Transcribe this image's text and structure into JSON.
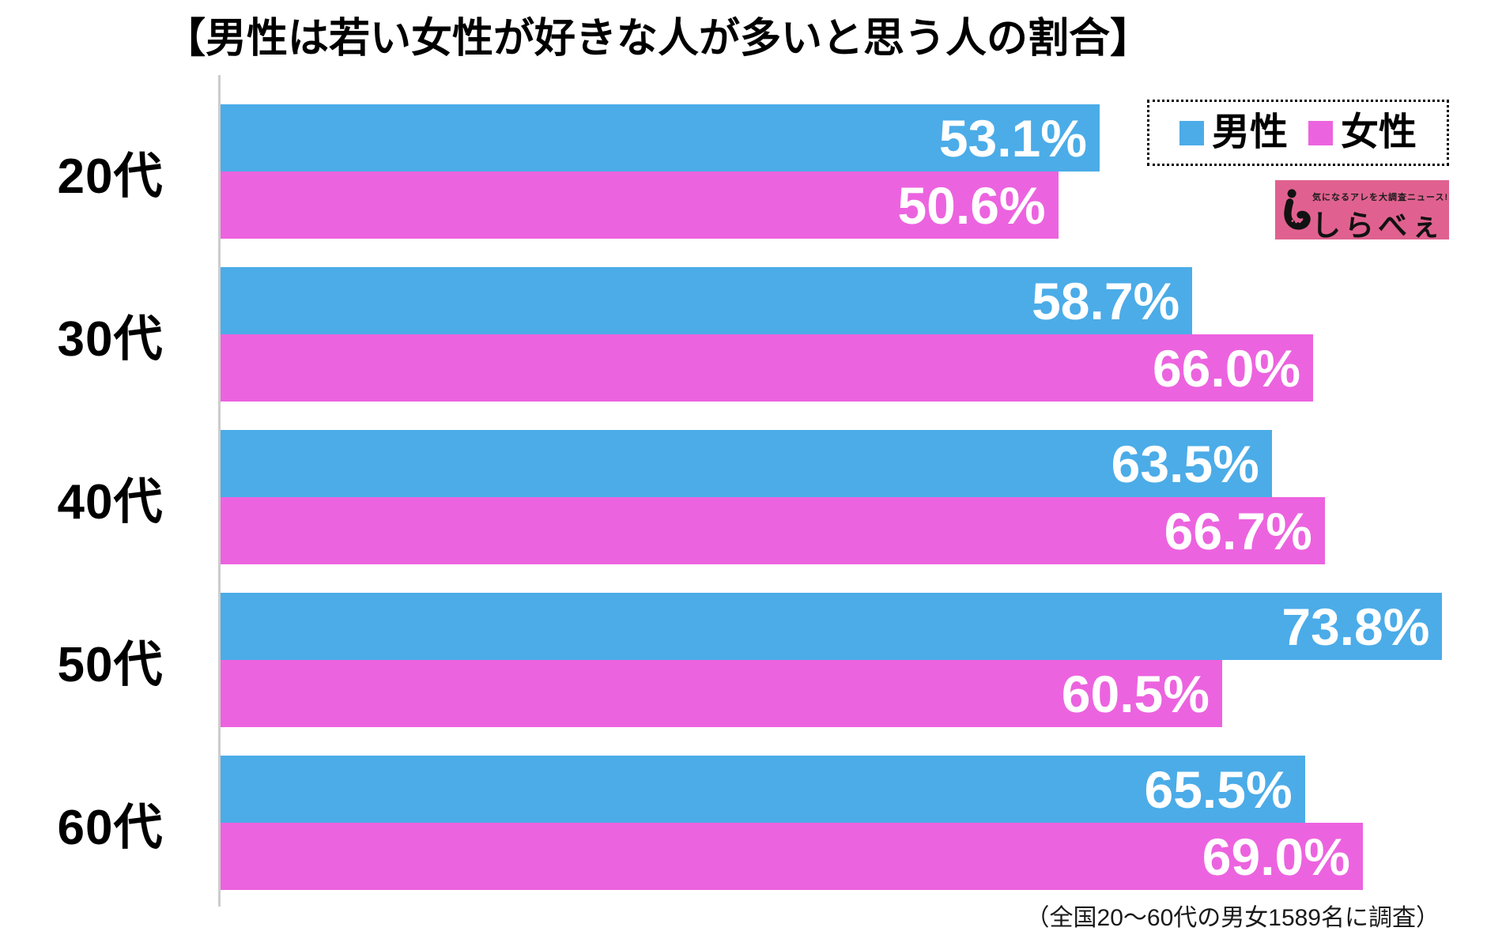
{
  "footnote": "（全国20〜60代の男女1589名に調査）",
  "logo": {
    "tagline": "気になるアレを大調査ニュース!",
    "name": "しらべぇ",
    "bg_color": "#E0618F",
    "icon": "shirabee-mascot"
  },
  "chart_data": {
    "type": "bar",
    "orientation": "horizontal",
    "title": "【男性は若い女性が好きな人が多いと思う人の割合】",
    "categories": [
      "20代",
      "30代",
      "40代",
      "50代",
      "60代"
    ],
    "series": [
      {
        "name": "男性",
        "color": "#4BACE8",
        "values": [
          53.1,
          58.7,
          63.5,
          73.8,
          65.5
        ],
        "labels": [
          "53.1%",
          "58.7%",
          "63.5%",
          "73.8%",
          "65.5%"
        ]
      },
      {
        "name": "女性",
        "color": "#EC63DF",
        "values": [
          50.6,
          66.0,
          66.7,
          60.5,
          69.0
        ],
        "labels": [
          "50.6%",
          "66.0%",
          "66.7%",
          "60.5%",
          "69.0%"
        ]
      }
    ],
    "xlim": [
      0,
      76.5
    ],
    "grid": false,
    "legend_position": "top-right",
    "value_labels": "inside-end",
    "value_label_color": "#ffffff",
    "axis_line_color": "#cccccc"
  }
}
